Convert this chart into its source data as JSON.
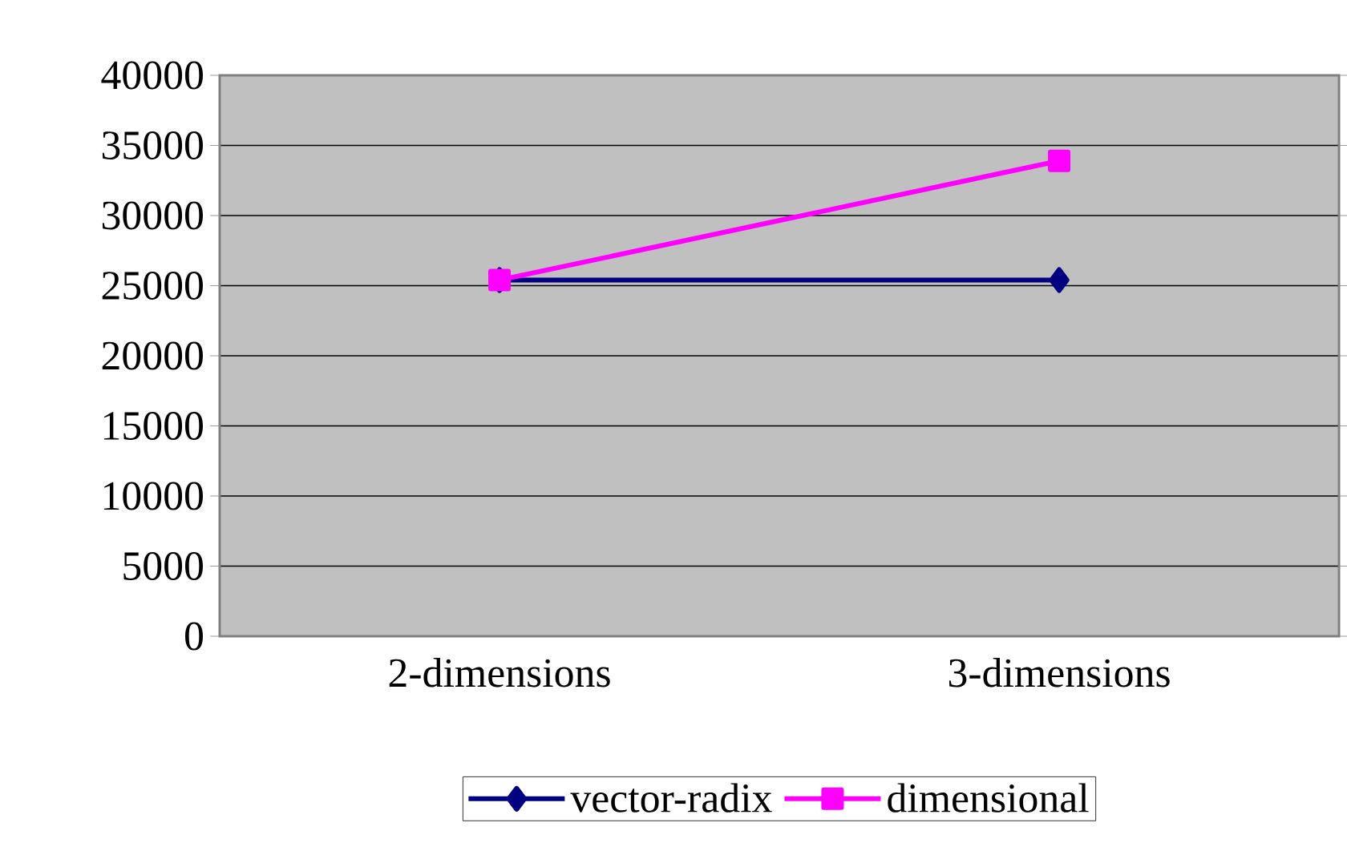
{
  "chart_data": {
    "type": "line",
    "categories": [
      "2-dimensions",
      "3-dimensions"
    ],
    "series": [
      {
        "name": "vector-radix",
        "color": "#000080",
        "marker": "diamond",
        "values": [
          25400,
          25400
        ]
      },
      {
        "name": "dimensional",
        "color": "#ff00ff",
        "marker": "square",
        "values": [
          25400,
          33900
        ]
      }
    ],
    "ylim": [
      0,
      40000
    ],
    "yticks": [
      0,
      5000,
      10000,
      15000,
      20000,
      25000,
      30000,
      35000,
      40000
    ],
    "grid": "y",
    "legend": "bottom",
    "line_style": "solid"
  }
}
